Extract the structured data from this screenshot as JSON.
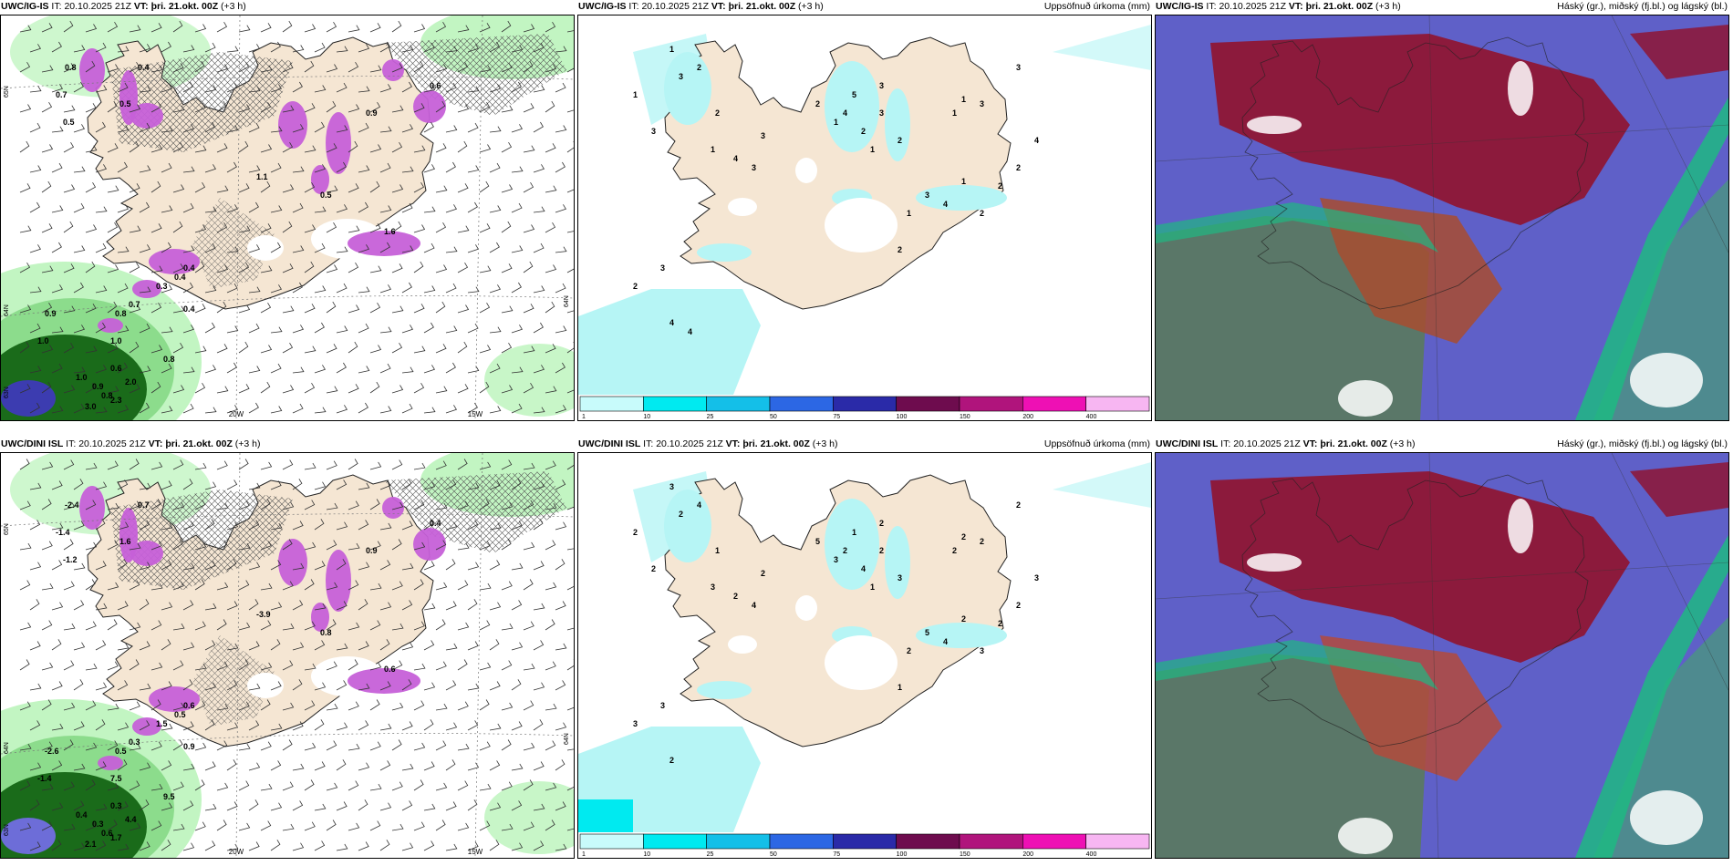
{
  "panels": [
    {
      "id": "p1",
      "model": "UWC/IG-IS",
      "it_label": "IT:",
      "it_time": "20.10.2025 21Z",
      "vt_label": "VT:",
      "vt_time": "þri. 21.okt. 00Z",
      "lead": "(+3 h)",
      "right_title": "",
      "type": "wind-precip",
      "lon_labels": [
        "20W",
        "15W"
      ],
      "lat_labels": [
        "65N",
        "64N",
        "63N",
        "64N"
      ],
      "values": [
        "0.8",
        "0.7",
        "0.5",
        "0.9",
        "1.0",
        "1.0",
        "0.9",
        "0.8",
        "0.6",
        "0.4",
        "0.3",
        "3.0",
        "2.3",
        "2.0",
        "1.0",
        "0.8",
        "1.1",
        "0.5",
        "0.9",
        "1.6",
        "0.4",
        "0.4",
        "0.8",
        "0.7",
        "0.5",
        "0.4",
        "0.6"
      ]
    },
    {
      "id": "p2",
      "model": "UWC/IG-IS",
      "it_label": "IT:",
      "it_time": "20.10.2025 21Z",
      "vt_label": "VT:",
      "vt_time": "þri. 21.okt. 00Z",
      "lead": "(+3 h)",
      "right_title": "Uppsöfnuð úrkoma (mm)",
      "type": "accum",
      "values": [
        "1",
        "3",
        "2",
        "1",
        "2",
        "3",
        "4",
        "1",
        "3",
        "3",
        "2",
        "1",
        "2",
        "1",
        "3",
        "2",
        "3",
        "4",
        "5",
        "1",
        "1",
        "3",
        "3",
        "4",
        "2",
        "2",
        "2",
        "1",
        "4",
        "3",
        "2",
        "1",
        "2",
        "3",
        "4",
        "4"
      ]
    },
    {
      "id": "p3",
      "model": "UWC/IG-IS",
      "it_label": "IT:",
      "it_time": "20.10.2025 21Z",
      "vt_label": "VT:",
      "vt_time": "þri. 21.okt. 00Z",
      "lead": "(+3 h)",
      "right_title": "Háský (gr.), miðský (fj.bl.) og lágský (bl.)",
      "type": "clouds"
    },
    {
      "id": "p4",
      "model": "UWC/DINI ISL",
      "it_label": "IT:",
      "it_time": "20.10.2025 21Z",
      "vt_label": "VT:",
      "vt_time": "þri. 21.okt. 00Z",
      "lead": "(+3 h)",
      "right_title": "",
      "type": "wind-precip",
      "lon_labels": [
        "20W",
        "15W"
      ],
      "lat_labels": [
        "65N",
        "64N",
        "63N",
        "64N"
      ],
      "values": [
        "-2.4",
        "-1.4",
        "-1.2",
        "-2.6",
        "-1.4",
        "0.4",
        "0.3",
        "0.6",
        "0.3",
        "0.9",
        "1.5",
        "2.1",
        "1.7",
        "4.4",
        "7.5",
        "9.5",
        "-3.9",
        "0.8",
        "0.9",
        "0.6",
        "0.5",
        "0.6",
        "0.5",
        "0.3",
        "1.6",
        "0.7",
        "0.4"
      ]
    },
    {
      "id": "p5",
      "model": "UWC/DINI ISL",
      "it_label": "IT:",
      "it_time": "20.10.2025 21Z",
      "vt_label": "VT:",
      "vt_time": "þri. 21.okt. 00Z",
      "lead": "(+3 h)",
      "right_title": "Uppsöfnuð úrkoma (mm)",
      "type": "accum",
      "values": [
        "3",
        "2",
        "4",
        "2",
        "1",
        "2",
        "2",
        "3",
        "4",
        "2",
        "5",
        "3",
        "4",
        "1",
        "2",
        "3",
        "2",
        "2",
        "1",
        "2",
        "2",
        "2",
        "2",
        "3",
        "2",
        "2",
        "3",
        "2",
        "4",
        "5",
        "1",
        "2",
        "3",
        "3",
        "2"
      ]
    },
    {
      "id": "p6",
      "model": "UWC/DINI ISL",
      "it_label": "IT:",
      "it_time": "20.10.2025 21Z",
      "vt_label": "VT:",
      "vt_time": "þri. 21.okt. 00Z",
      "lead": "(+3 h)",
      "right_title": "Háský (gr.), miðský (fj.bl.) og lágský (bl.)",
      "type": "clouds"
    }
  ],
  "colorbar": {
    "labels": [
      "1",
      "10",
      "25",
      "50",
      "75",
      "100",
      "150",
      "200",
      "400"
    ],
    "colors": [
      "#c8fbfb",
      "#00eaf0",
      "#14bfe8",
      "#2c67e4",
      "#2a2aa8",
      "#6e0c4e",
      "#b0147c",
      "#ee10b4",
      "#f7b6f2"
    ]
  },
  "colors": {
    "land": "#f5e6d3",
    "precip_light": "#c2f5c2",
    "precip_mid": "#8cdc8c",
    "precip_dark": "#1a6b1a",
    "precip_deep": "#0a3f0a",
    "precip_purple": "#c660d8",
    "accum_cyan": "#b6f5f5",
    "cloud_high": "#5a7768",
    "cloud_mid": "#5f60c8",
    "cloud_low": "#8c1a3c",
    "cloud_green": "#1fb882"
  }
}
